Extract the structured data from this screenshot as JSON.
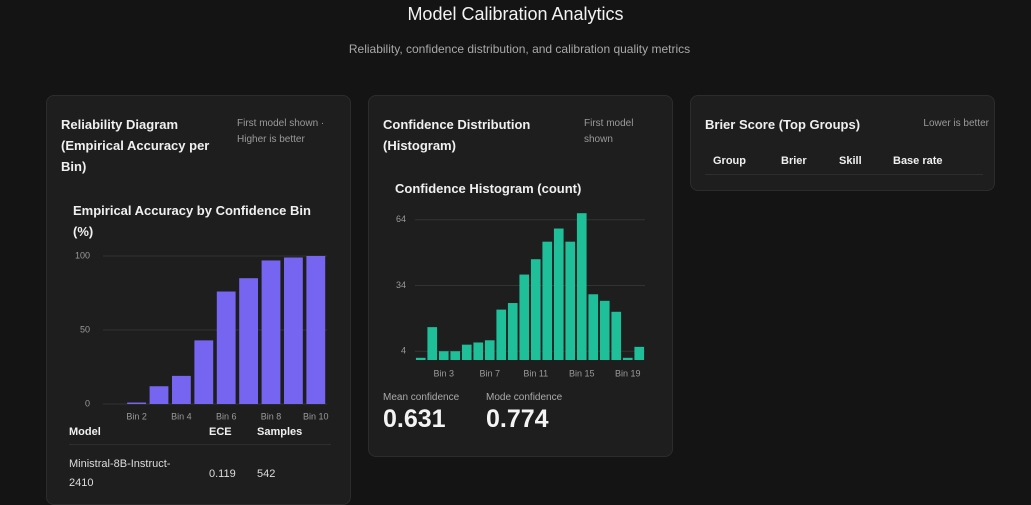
{
  "header": {
    "title": "Model Calibration Analytics",
    "subtitle": "Reliability, confidence distribution, and calibration quality metrics"
  },
  "cards": [
    {
      "title": "Reliability Diagram (Empirical Accuracy per Bin)",
      "note": "First model shown · Higher is better",
      "table": {
        "columns": [
          "Model",
          "ECE",
          "Samples"
        ],
        "rows": [
          [
            "Ministral-8B-Instruct-2410",
            "0.119",
            "542"
          ]
        ]
      }
    },
    {
      "title": "Confidence Distribution (Histogram)",
      "note": "First model shown",
      "stats": [
        {
          "label": "Mean confidence",
          "value": "0.631"
        },
        {
          "label": "Mode confidence",
          "value": "0.774"
        }
      ]
    },
    {
      "title": "Brier Score (Top Groups)",
      "note": "Lower is better",
      "table": {
        "columns": [
          "Group",
          "Brier",
          "Skill",
          "Base rate"
        ],
        "rows": []
      }
    }
  ],
  "chart_data": [
    {
      "type": "bar",
      "title": "Empirical Accuracy by Confidence Bin (%)",
      "categories": [
        null,
        "Bin 2",
        null,
        "Bin 4",
        null,
        "Bin 6",
        null,
        "Bin 8",
        null,
        "Bin 10"
      ],
      "values": [
        0,
        1,
        12,
        19,
        43,
        76,
        85,
        97,
        99,
        100
      ],
      "color": "#7565f0",
      "ylim": [
        0,
        100
      ],
      "yticks": [
        0,
        50,
        100
      ],
      "grid": true
    },
    {
      "type": "bar",
      "title": "Confidence Histogram (count)",
      "categories": [
        null,
        null,
        "Bin 3",
        null,
        null,
        null,
        "Bin 7",
        null,
        null,
        null,
        "Bin 11",
        null,
        null,
        null,
        "Bin 15",
        null,
        null,
        null,
        "Bin 19",
        null
      ],
      "values": [
        1,
        15,
        4,
        4,
        7,
        8,
        9,
        23,
        26,
        39,
        46,
        54,
        60,
        54,
        67,
        30,
        27,
        22,
        1,
        6
      ],
      "color": "#1fbf9a",
      "ylim": [
        0,
        68
      ],
      "yticks": [
        4,
        34,
        64
      ],
      "grid": true
    }
  ]
}
